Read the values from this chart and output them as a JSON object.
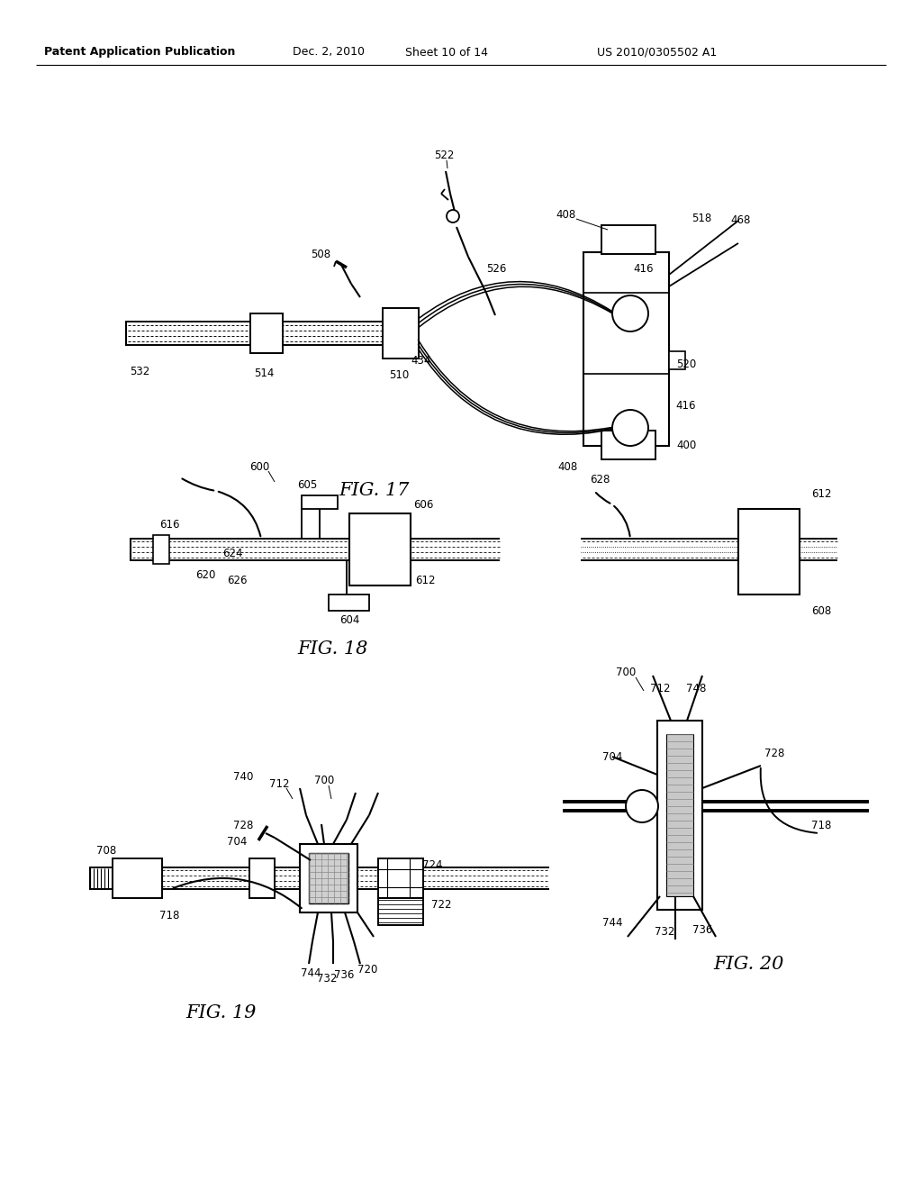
{
  "bg": "#ffffff",
  "header_left": "Patent Application Publication",
  "header_date": "Dec. 2, 2010",
  "header_sheet": "Sheet 10 of 14",
  "header_patent": "US 2010/0305502 A1",
  "fig17": "FIG. 17",
  "fig18": "FIG. 18",
  "fig19": "FIG. 19",
  "fig20": "FIG. 20"
}
